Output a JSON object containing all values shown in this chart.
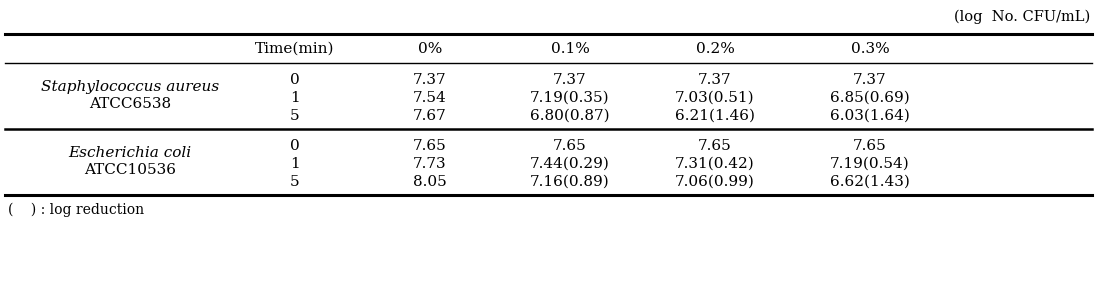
{
  "caption": "(log  No. CFU/mL)",
  "col_headers": [
    "Time(min)",
    "0%",
    "0.1%",
    "0.2%",
    "0.3%"
  ],
  "row_group1_label1": "Staphylococcus aureus",
  "row_group1_label2": "ATCC6538",
  "row_group1_times": [
    "0",
    "1",
    "5"
  ],
  "row_group1_data": [
    [
      "7.37",
      "7.37",
      "7.37",
      "7.37"
    ],
    [
      "7.54",
      "7.19(0.35)",
      "7.03(0.51)",
      "6.85(0.69)"
    ],
    [
      "7.67",
      "6.80(0.87)",
      "6.21(1.46)",
      "6.03(1.64)"
    ]
  ],
  "row_group2_label1": "Escherichia coli",
  "row_group2_label2": "ATCC10536",
  "row_group2_times": [
    "0",
    "1",
    "5"
  ],
  "row_group2_data": [
    [
      "7.65",
      "7.65",
      "7.65",
      "7.65"
    ],
    [
      "7.73",
      "7.44(0.29)",
      "7.31(0.42)",
      "7.19(0.54)"
    ],
    [
      "8.05",
      "7.16(0.89)",
      "7.06(0.99)",
      "6.62(1.43)"
    ]
  ],
  "footnote": "(    ) : log reduction",
  "bg_color": "#ffffff",
  "text_color": "#000000",
  "font_size": 11,
  "caption_font_size": 10.5
}
